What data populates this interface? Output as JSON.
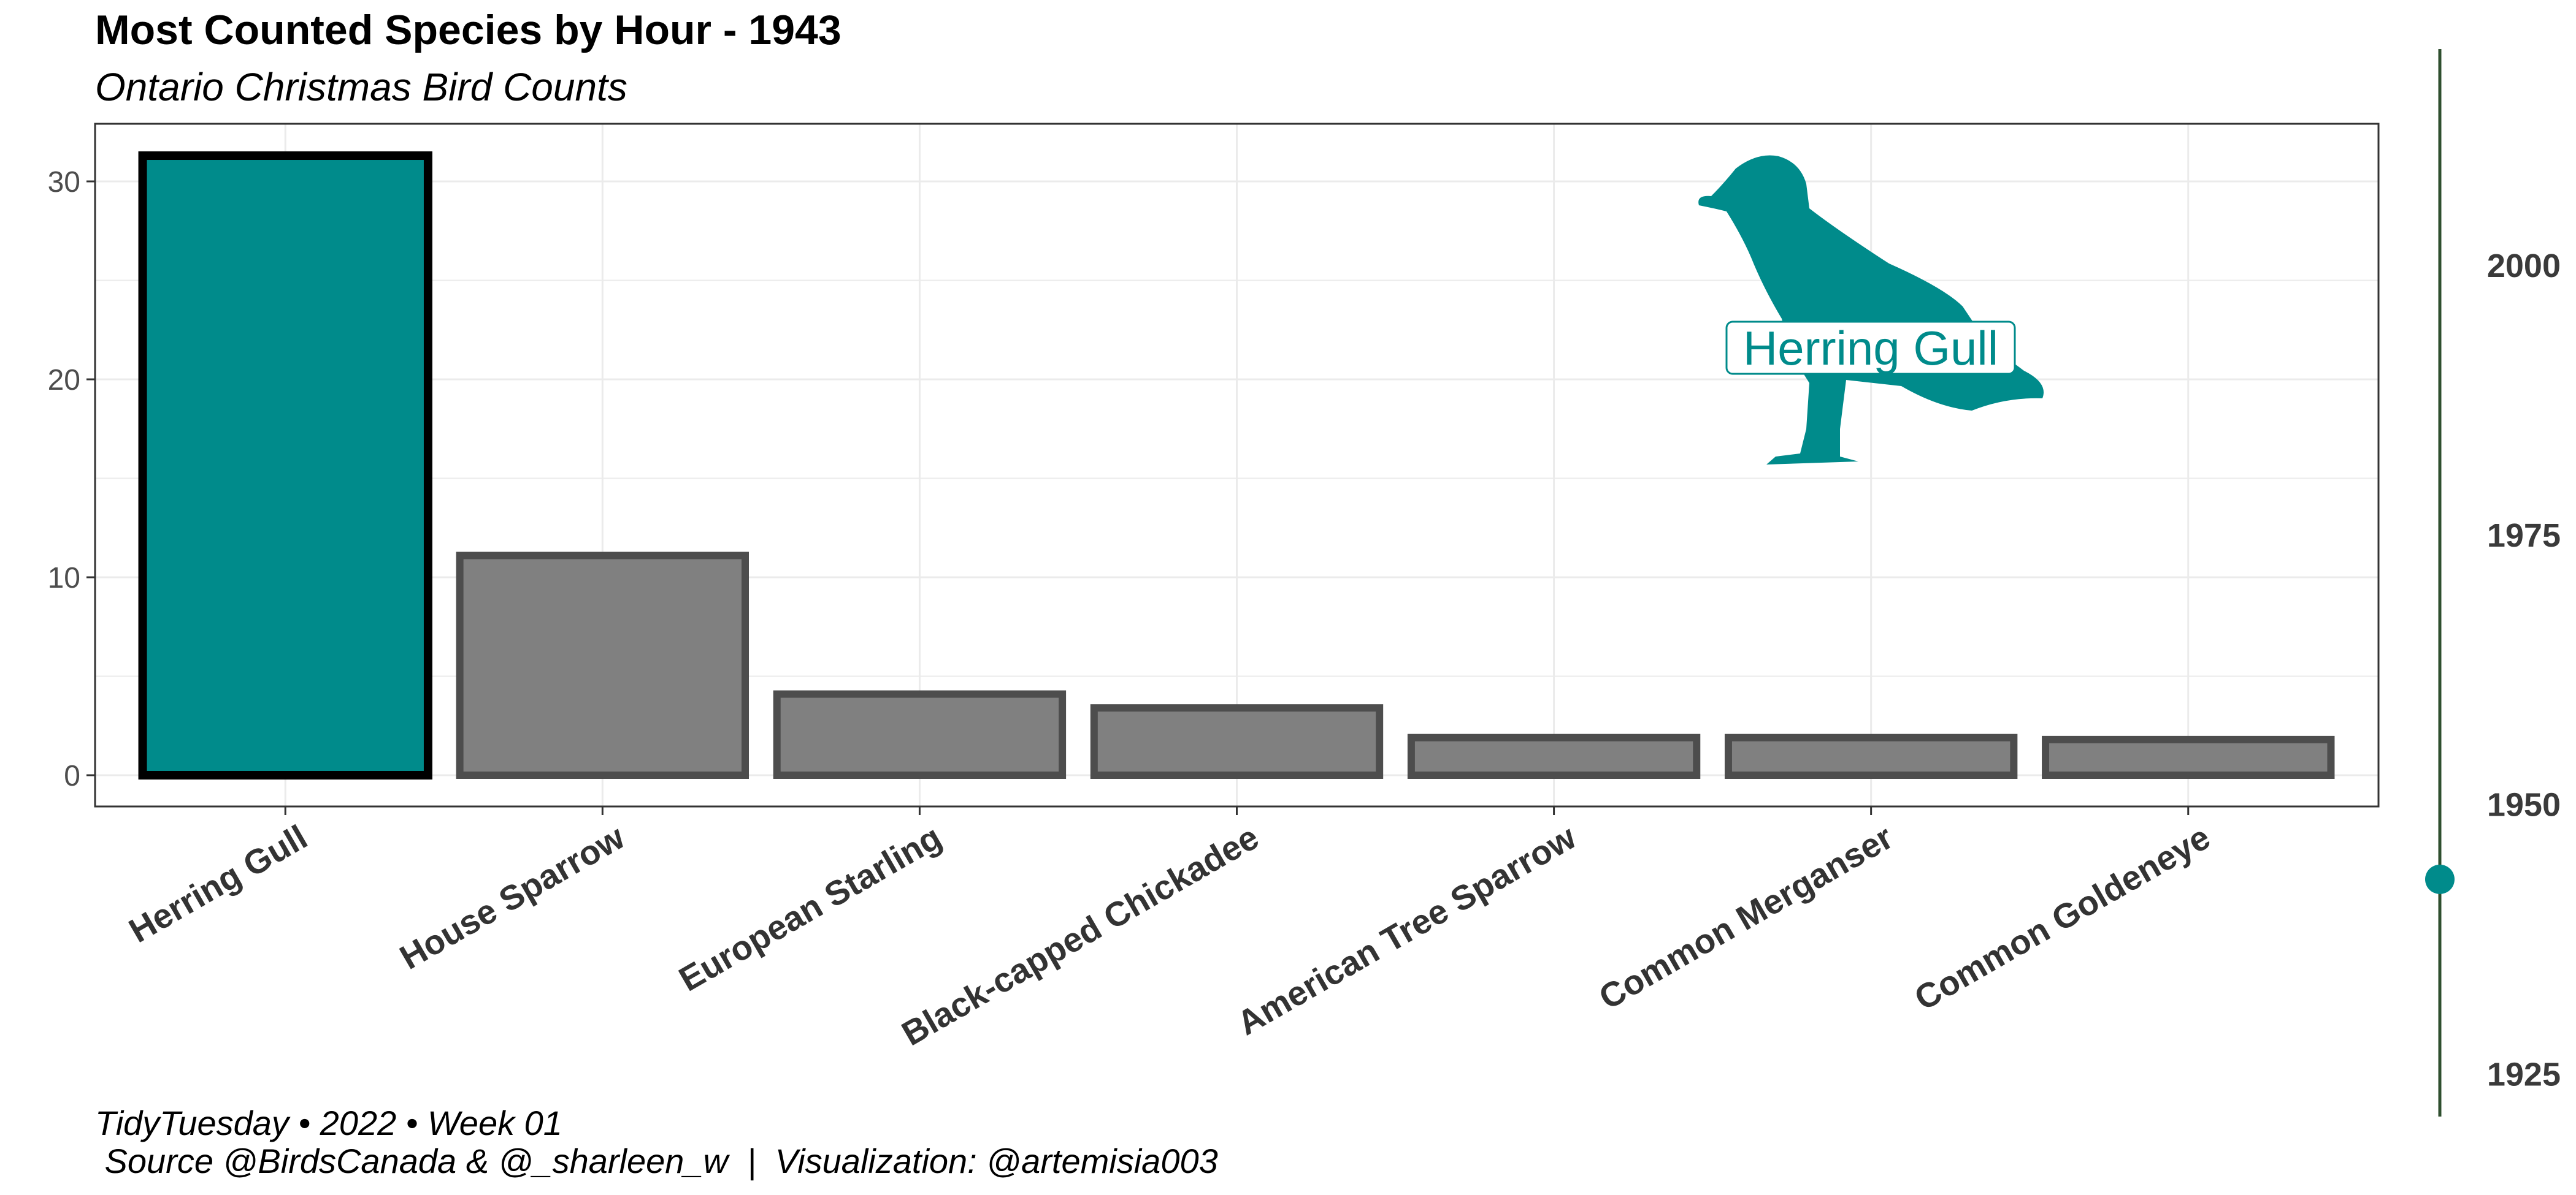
{
  "chart_data": {
    "type": "bar",
    "title": "Most Counted Species by Hour - 1943",
    "subtitle": "Ontario Christmas Bird Counts",
    "categories": [
      "Herring Gull",
      "House Sparrow",
      "European Starling",
      "Black-capped Chickadee",
      "American Tree Sparrow",
      "Common Merganser",
      "Common Goldeneye"
    ],
    "values": [
      31.3,
      11.1,
      4.1,
      3.4,
      1.9,
      1.9,
      1.8
    ],
    "highlight_index": 0,
    "xlabel": "",
    "ylabel": "",
    "ylim": [
      -1.6,
      33
    ],
    "yticks": [
      0,
      10,
      20,
      30
    ],
    "grid": true,
    "legend": "none",
    "annotation": {
      "label": "Herring Gull",
      "icon": "herring-gull-silhouette-icon"
    },
    "timeline": {
      "labels": [
        2000,
        1975,
        1950,
        1925
      ],
      "range": [
        1921,
        2020
      ],
      "current_year": 1943
    },
    "colors": {
      "highlight": "#008B8B",
      "bar": "#808080",
      "bar_border": "#4d4d4d",
      "highlight_border": "#000000",
      "timeline_line": "#2f4f2f",
      "grid": "#ebebeb"
    }
  },
  "caption": {
    "line1": "TidyTuesday • 2022 • Week 01",
    "line2": " Source @BirdsCanada & @_sharleen_w  |  Visualization: @artemisia003"
  }
}
